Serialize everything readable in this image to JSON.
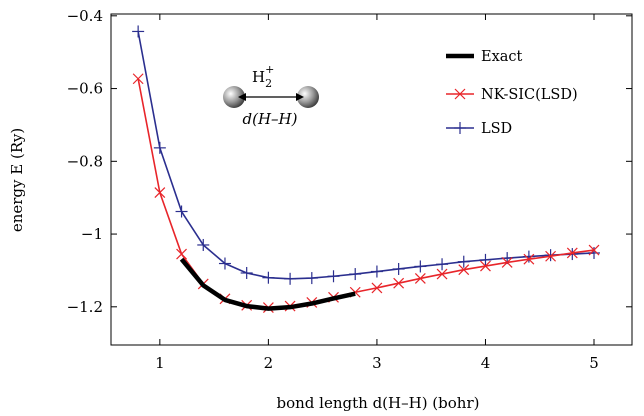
{
  "chart_data": {
    "type": "line",
    "xlabel": "bond length d(H–H) (bohr)",
    "ylabel": "energy E (Ry)",
    "xlim": [
      0.55,
      5.35
    ],
    "ylim": [
      -1.305,
      -0.395
    ],
    "xticks": [
      1,
      2,
      3,
      4,
      5
    ],
    "xtick_labels": [
      "1",
      "2",
      "3",
      "4",
      "5"
    ],
    "yticks": [
      -1.2,
      -1.0,
      -0.8,
      -0.6,
      -0.4
    ],
    "ytick_labels": [
      "−1.2",
      "−1",
      "−0.8",
      "−0.6",
      "−0.4"
    ],
    "grid": false,
    "legend_position": "top-right",
    "inset": {
      "molecule": "H",
      "molecule_sub": "2",
      "molecule_sup": "+",
      "label": "d(H–H)"
    },
    "series": [
      {
        "name": "Exact",
        "color": "#000000",
        "marker": "none",
        "x": [
          1.2,
          1.4,
          1.6,
          1.8,
          2.0,
          2.2,
          2.4,
          2.6,
          2.8
        ],
        "y": [
          -1.069,
          -1.141,
          -1.181,
          -1.198,
          -1.205,
          -1.201,
          -1.191,
          -1.177,
          -1.164
        ]
      },
      {
        "name": "NK-SIC(LSD)",
        "color": "#e8252a",
        "marker": "x",
        "x": [
          0.8,
          1.0,
          1.2,
          1.4,
          1.6,
          1.8,
          2.0,
          2.2,
          2.4,
          2.6,
          2.8,
          3.0,
          3.2,
          3.4,
          3.6,
          3.8,
          4.0,
          4.2,
          4.4,
          4.6,
          4.8,
          5.0
        ],
        "y": [
          -0.573,
          -0.886,
          -1.055,
          -1.137,
          -1.178,
          -1.196,
          -1.202,
          -1.198,
          -1.188,
          -1.174,
          -1.16,
          -1.148,
          -1.135,
          -1.122,
          -1.11,
          -1.098,
          -1.088,
          -1.078,
          -1.069,
          -1.061,
          -1.052,
          -1.044
        ]
      },
      {
        "name": "LSD",
        "color": "#2b2f8f",
        "marker": "+",
        "x": [
          0.8,
          1.0,
          1.2,
          1.4,
          1.6,
          1.8,
          2.0,
          2.2,
          2.4,
          2.6,
          2.8,
          3.0,
          3.2,
          3.4,
          3.6,
          3.8,
          4.0,
          4.2,
          4.4,
          4.6,
          4.8,
          5.0
        ],
        "y": [
          -0.443,
          -0.763,
          -0.938,
          -1.03,
          -1.081,
          -1.107,
          -1.12,
          -1.123,
          -1.121,
          -1.116,
          -1.11,
          -1.103,
          -1.096,
          -1.089,
          -1.083,
          -1.076,
          -1.071,
          -1.066,
          -1.062,
          -1.058,
          -1.055,
          -1.052
        ]
      }
    ]
  }
}
